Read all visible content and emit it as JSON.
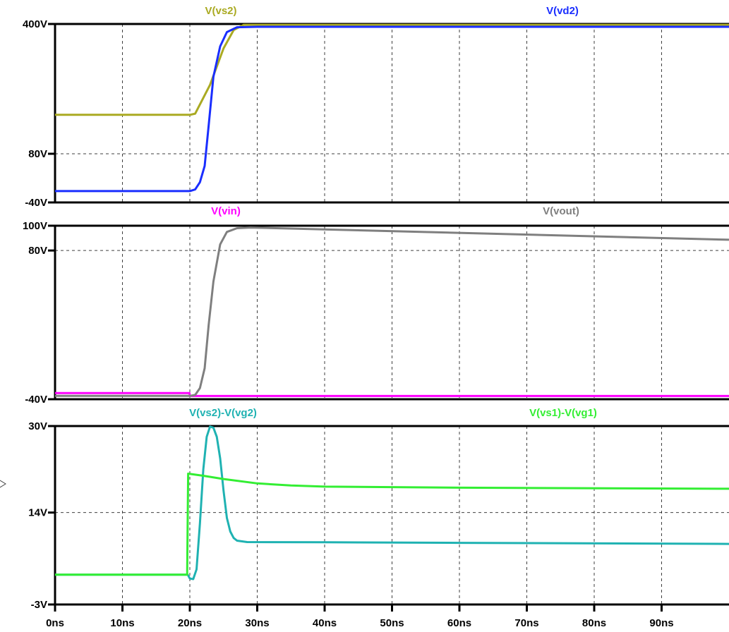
{
  "chart_data": {
    "type": "line",
    "x_unit": "ns",
    "xlim": [
      0,
      100
    ],
    "x_tick_values": [
      0,
      10,
      20,
      30,
      40,
      50,
      60,
      70,
      80,
      90
    ],
    "x_tick_labels": [
      "0ns",
      "10ns",
      "20ns",
      "30ns",
      "40ns",
      "50ns",
      "60ns",
      "70ns",
      "80ns",
      "90ns"
    ],
    "grid": true,
    "panes": [
      {
        "y_ticks": [
          {
            "label": "400V",
            "value": 400
          },
          {
            "label": "80V",
            "value": 80
          },
          {
            "label": "-40V",
            "value": -40
          }
        ],
        "ylim": [
          -40,
          400
        ],
        "series": [
          {
            "name": "V(vs2)",
            "color": "#aaaa22",
            "points": [
              [
                0,
                176
              ],
              [
                20,
                176
              ],
              [
                20.8,
                179
              ],
              [
                23,
                250
              ],
              [
                25,
                340
              ],
              [
                26.5,
                385
              ],
              [
                28,
                398
              ],
              [
                100,
                398
              ]
            ]
          },
          {
            "name": "V(vd2)",
            "color": "#1a2eff",
            "points": [
              [
                0,
                -12
              ],
              [
                20,
                -12
              ],
              [
                20.8,
                -8
              ],
              [
                21.5,
                10
              ],
              [
                22.2,
                50
              ],
              [
                22.8,
                150
              ],
              [
                23.5,
                270
              ],
              [
                24.5,
                345
              ],
              [
                25.5,
                380
              ],
              [
                27,
                392
              ],
              [
                30,
                393
              ],
              [
                100,
                393
              ]
            ]
          }
        ]
      },
      {
        "y_ticks": [
          {
            "label": "100V",
            "value": 100
          },
          {
            "label": "80V",
            "value": 80
          },
          {
            "label": "-40V",
            "value": -40
          }
        ],
        "ylim": [
          -40,
          100
        ],
        "series": [
          {
            "name": "V(vin)",
            "color": "#ff00ff",
            "points": [
              [
                0,
                -35
              ],
              [
                19.95,
                -35
              ],
              [
                20,
                -37.4
              ],
              [
                100,
                -37.4
              ]
            ]
          },
          {
            "name": "V(vout)",
            "color": "#7f7f7f",
            "points": [
              [
                0,
                -37.3
              ],
              [
                20,
                -37.3
              ],
              [
                20.8,
                -36.5
              ],
              [
                21.5,
                -31
              ],
              [
                22.2,
                -15
              ],
              [
                22.8,
                20
              ],
              [
                23.5,
                55
              ],
              [
                24.5,
                85
              ],
              [
                25.5,
                95
              ],
              [
                27,
                98
              ],
              [
                29,
                98.5
              ],
              [
                100,
                88.7
              ]
            ]
          }
        ]
      },
      {
        "y_ticks": [
          {
            "label": "30V",
            "value": 30
          },
          {
            "label": "14V",
            "value": 14
          },
          {
            "label": "-3V",
            "value": -3
          }
        ],
        "ylim": [
          -3,
          30
        ],
        "series": [
          {
            "name": "V(vs2)-V(vg2)",
            "color": "#1fb2b2",
            "points": [
              [
                0,
                2.5
              ],
              [
                19.7,
                2.5
              ],
              [
                20,
                1.8
              ],
              [
                20.5,
                1.7
              ],
              [
                21,
                3.5
              ],
              [
                21.5,
                12
              ],
              [
                22,
                22
              ],
              [
                22.5,
                28
              ],
              [
                23,
                29.9
              ],
              [
                23.5,
                29.7
              ],
              [
                24,
                28
              ],
              [
                24.5,
                24
              ],
              [
                25,
                18
              ],
              [
                25.5,
                13
              ],
              [
                26,
                10.5
              ],
              [
                26.5,
                9.3
              ],
              [
                27,
                8.8
              ],
              [
                28.5,
                8.55
              ],
              [
                40,
                8.5
              ],
              [
                60,
                8.4
              ],
              [
                100,
                8.2
              ]
            ]
          },
          {
            "name": "V(vs1)-V(vg1)",
            "color": "#33ee33",
            "points": [
              [
                0,
                2.5
              ],
              [
                19.6,
                2.5
              ],
              [
                19.75,
                21.2
              ],
              [
                22,
                20.8
              ],
              [
                25,
                20.2
              ],
              [
                30,
                19.4
              ],
              [
                35,
                19.0
              ],
              [
                40,
                18.8
              ],
              [
                60,
                18.6
              ],
              [
                100,
                18.4
              ]
            ]
          }
        ]
      }
    ]
  }
}
